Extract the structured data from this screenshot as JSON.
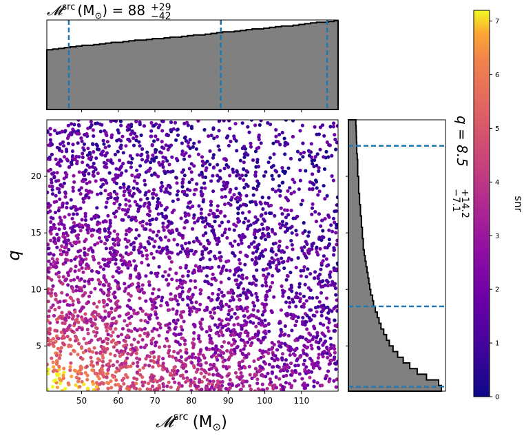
{
  "chart_data": [
    {
      "id": "scatter",
      "type": "scatter",
      "xlabel_main": "𝓜",
      "xlabel_sup": "src",
      "xlabel_unit": "(M",
      "xlabel_sub": "⊙",
      "xlabel_close": ")",
      "ylabel": "q",
      "xlim": [
        40.5,
        120
      ],
      "ylim": [
        1,
        25
      ],
      "xticks": [
        50,
        60,
        70,
        80,
        90,
        100,
        110
      ],
      "yticks": [
        5,
        10,
        15,
        20
      ],
      "color_by": "snr",
      "colormap": "plasma",
      "density_description": "densest and brightest near low chirp mass and low q; fading toward high mass and high q",
      "grid": false
    },
    {
      "id": "top-histogram",
      "type": "histogram",
      "variable": "chirp_mass_src",
      "title_main": "𝓜",
      "title_sup": "src",
      "title_unit": "(M",
      "title_sub": "⊙",
      "title_eq": ") = 88",
      "title_plus": "+29",
      "title_minus": "−42",
      "bin_edges_start": 40.5,
      "bin_width": 1.6,
      "counts": [
        0.8,
        0.81,
        0.82,
        0.83,
        0.84,
        0.85,
        0.86,
        0.86,
        0.87,
        0.88,
        0.89,
        0.9,
        0.9,
        0.91,
        0.92,
        0.93,
        0.93,
        0.94,
        0.95,
        0.95,
        0.96,
        0.97,
        0.97,
        0.98,
        0.99,
        1.0,
        1.0,
        1.01,
        1.02,
        1.03,
        1.04,
        1.04,
        1.05,
        1.06,
        1.07,
        1.08,
        1.08,
        1.09,
        1.1,
        1.11,
        1.12,
        1.12,
        1.13,
        1.14,
        1.15,
        1.16,
        1.17,
        1.17,
        1.18,
        1.19
      ],
      "quantile_lines": [
        46.5,
        88,
        117
      ],
      "fill_color": "#808080",
      "line_color": "#1f77b4"
    },
    {
      "id": "side-histogram",
      "type": "histogram",
      "variable": "q",
      "orientation": "horizontal",
      "label_main": "q = 8.5",
      "label_plus": "+14.2",
      "label_minus": "−7.1",
      "bin_edges_start": 1,
      "bin_width": 0.5,
      "counts": [
        1.0,
        0.97,
        0.84,
        0.74,
        0.66,
        0.59,
        0.53,
        0.48,
        0.44,
        0.41,
        0.38,
        0.35,
        0.33,
        0.31,
        0.29,
        0.27,
        0.26,
        0.24,
        0.23,
        0.22,
        0.21,
        0.2,
        0.19,
        0.18,
        0.17,
        0.16,
        0.16,
        0.15,
        0.15,
        0.14,
        0.14,
        0.13,
        0.13,
        0.12,
        0.12,
        0.11,
        0.11,
        0.11,
        0.1,
        0.1,
        0.1,
        0.095,
        0.09,
        0.09,
        0.087,
        0.085,
        0.083,
        0.08
      ],
      "quantile_lines": [
        1.4,
        8.5,
        22.7
      ],
      "fill_color": "#808080",
      "line_color": "#1f77b4"
    },
    {
      "id": "colorbar",
      "type": "colorbar",
      "label": "snr",
      "range": [
        0,
        7.2
      ],
      "ticks": [
        0,
        1,
        2,
        3,
        4,
        5,
        6,
        7
      ],
      "colormap": "plasma"
    }
  ]
}
